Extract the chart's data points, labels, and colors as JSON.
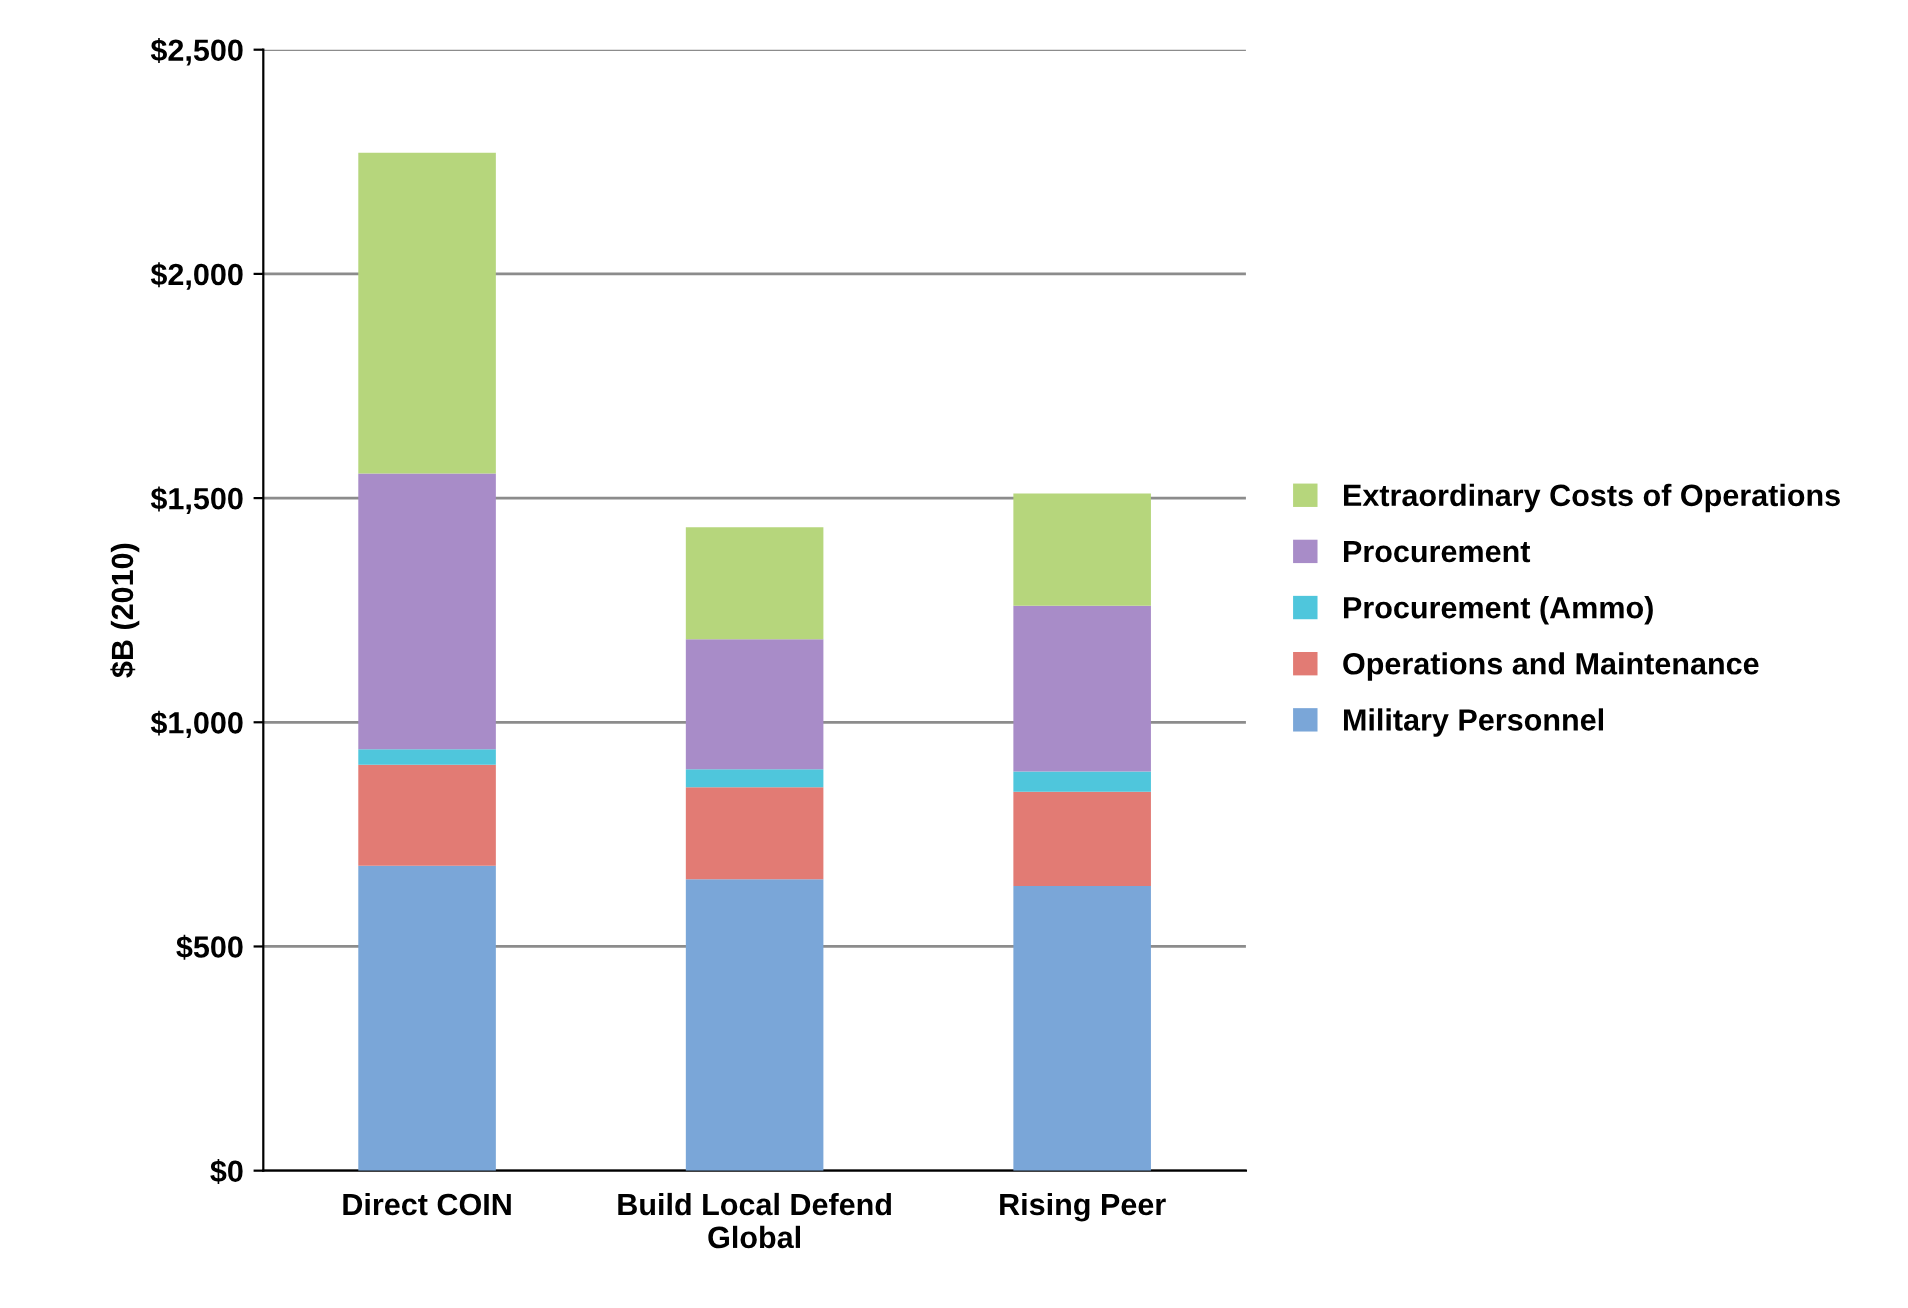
{
  "chart_data": {
    "type": "bar",
    "stacked": true,
    "ylabel": "$B (2010)",
    "categories": [
      "Direct COIN",
      "Build Local Defend\nGlobal",
      "Rising Peer"
    ],
    "series": [
      {
        "name": "Military Personnel",
        "color": "#7aa6d8",
        "values": [
          680,
          650,
          635
        ]
      },
      {
        "name": "Operations and Maintenance",
        "color": "#e27b74",
        "values": [
          225,
          205,
          210
        ]
      },
      {
        "name": "Procurement (Ammo)",
        "color": "#4fc6dc",
        "values": [
          35,
          40,
          45
        ]
      },
      {
        "name": "Procurement",
        "color": "#a88cc8",
        "values": [
          615,
          290,
          370
        ]
      },
      {
        "name": "Extraordinary Costs of Operations",
        "color": "#b6d67c",
        "values": [
          715,
          250,
          250
        ]
      }
    ],
    "ylim": [
      0,
      2500
    ],
    "yticks": [
      {
        "value": 0,
        "label": "$0"
      },
      {
        "value": 500,
        "label": "$500"
      },
      {
        "value": 1000,
        "label": "$1,000"
      },
      {
        "value": 1500,
        "label": "$1,500"
      },
      {
        "value": 2000,
        "label": "$2,000"
      },
      {
        "value": 2500,
        "label": "$2,500"
      }
    ],
    "grid": "y",
    "legend": "right"
  }
}
